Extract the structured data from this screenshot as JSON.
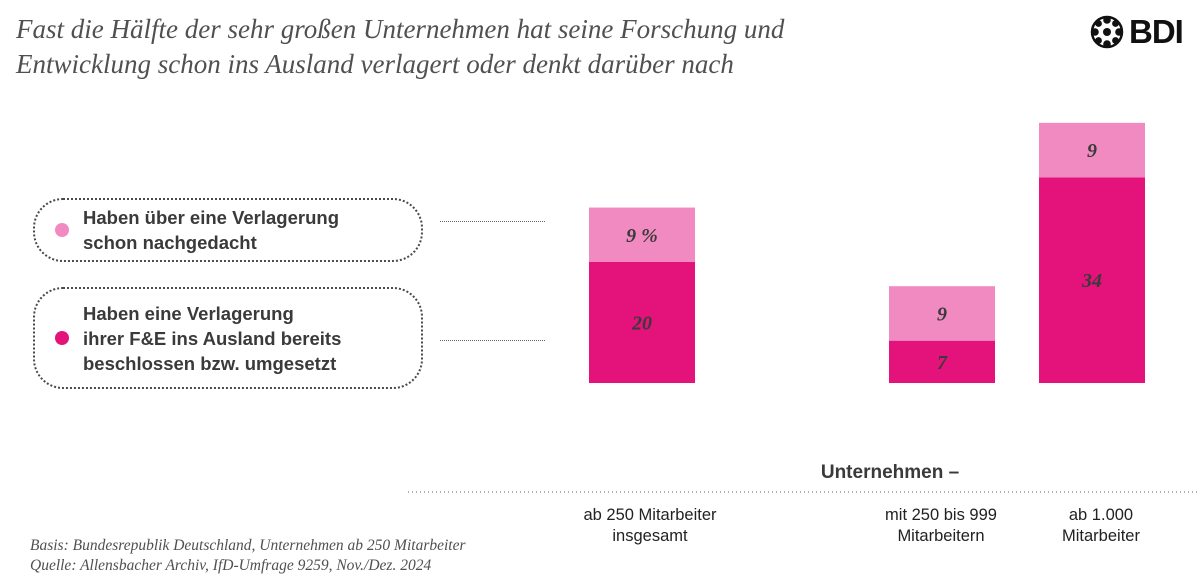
{
  "title": {
    "line1": "Fast die Hälfte der sehr großen Unternehmen hat seine Forschung und",
    "line2": "Entwicklung schon ins Ausland verlagert oder denkt darüber nach"
  },
  "logo": {
    "text": "BDI",
    "icon": "bdi-emblem-icon"
  },
  "colors": {
    "considered": "#f28ac2",
    "decided": "#e3137b"
  },
  "legend": [
    {
      "key": "considered",
      "lines": [
        "Haben über eine Verlagerung",
        "schon nachgedacht"
      ]
    },
    {
      "key": "decided",
      "lines": [
        "Haben eine Verlagerung",
        "ihrer F&E ins Ausland bereits",
        "beschlossen bzw. umgesetzt"
      ]
    }
  ],
  "chart_data": {
    "type": "bar",
    "stacked": true,
    "categories": [
      [
        "ab 250 Mitarbeiter",
        "insgesamt"
      ],
      [
        "mit 250 bis 999",
        "Mitarbeitern"
      ],
      [
        "ab 1.000",
        "Mitarbeiter"
      ]
    ],
    "series": [
      {
        "key": "decided",
        "values": [
          20,
          7,
          34
        ],
        "labels": [
          "20",
          "7",
          "34"
        ]
      },
      {
        "key": "considered",
        "values": [
          9,
          9,
          9
        ],
        "labels": [
          "9 %",
          "9",
          "9"
        ]
      }
    ],
    "group_label": "Unternehmen –",
    "ylim": [
      0,
      45
    ]
  },
  "footer": {
    "line1": "Basis: Bundesrepublik Deutschland, Unternehmen ab 250 Mitarbeiter",
    "line2": "Quelle: Allensbacher Archiv, IfD-Umfrage 9259, Nov./Dez. 2024"
  }
}
